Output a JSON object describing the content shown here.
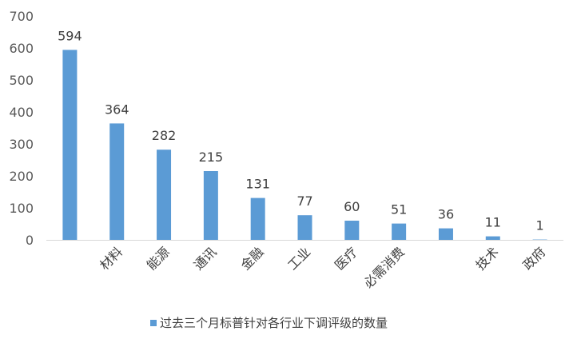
{
  "chart_data": {
    "type": "bar",
    "title": "",
    "xlabel": "",
    "ylabel": "",
    "ylim": [
      0,
      700
    ],
    "yticks": [
      0,
      100,
      200,
      300,
      400,
      500,
      600,
      700
    ],
    "grid": false,
    "legend_position": "bottom",
    "bar_color": "#5B9BD5",
    "categories": [
      "",
      "材料",
      "能源",
      "通讯",
      "金融",
      "工业",
      "医疗",
      "必需消费",
      "",
      "技术",
      "政府"
    ],
    "values": [
      594,
      364,
      282,
      215,
      131,
      77,
      60,
      51,
      36,
      11,
      1
    ],
    "series": [
      {
        "name": "过去三个月标普针对各行业下调评级的数量",
        "values": [
          594,
          364,
          282,
          215,
          131,
          77,
          60,
          51,
          36,
          11,
          1
        ]
      }
    ]
  }
}
